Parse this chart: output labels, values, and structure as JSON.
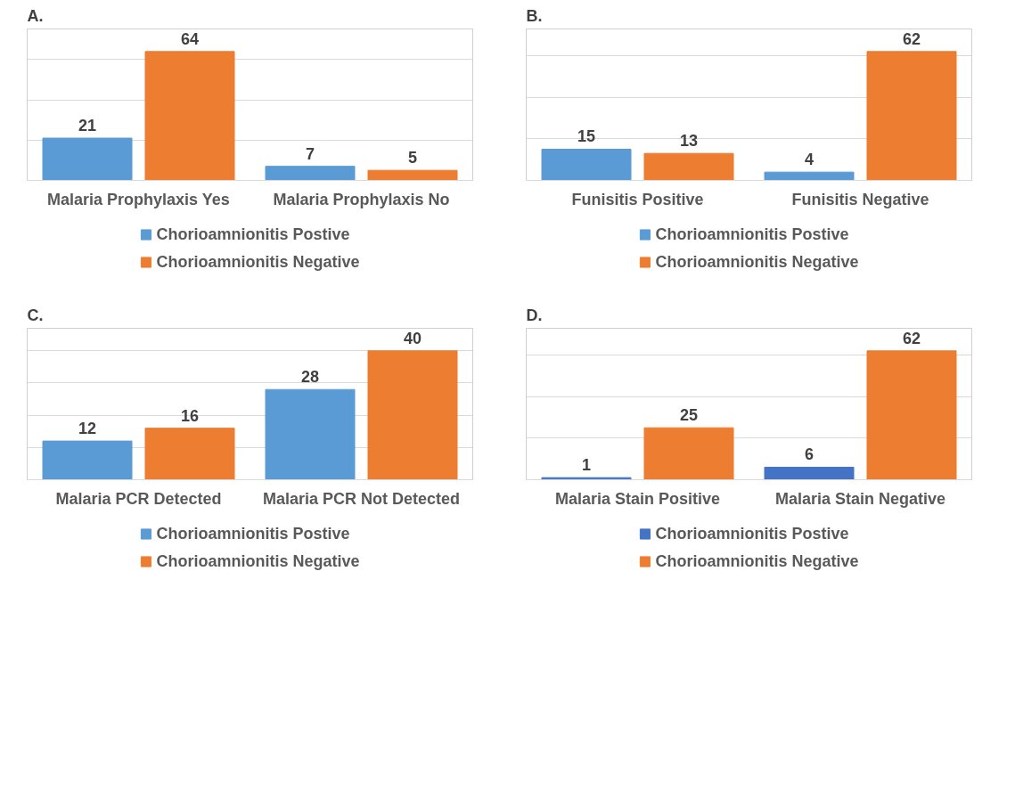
{
  "chart_data": [
    {
      "type": "bar",
      "title": "A.",
      "categories": [
        "Malaria Prophylaxis Yes",
        "Malaria Prophylaxis No"
      ],
      "series": [
        {
          "name": "Chorioamnionitis Postive",
          "color": "#5b9bd5",
          "values": [
            21,
            7
          ]
        },
        {
          "name": "Chorioamnionitis Negative",
          "color": "#ed7d31",
          "values": [
            64,
            5
          ]
        }
      ],
      "tick_labels": "x",
      "grid": "y",
      "legend": "bottom",
      "data_labels": true
    },
    {
      "type": "bar",
      "title": "B.",
      "categories": [
        "Funisitis Positive",
        "Funisitis Negative"
      ],
      "series": [
        {
          "name": "Chorioamnionitis Postive",
          "color": "#5b9bd5",
          "values": [
            15,
            4
          ]
        },
        {
          "name": "Chorioamnionitis Negative",
          "color": "#ed7d31",
          "values": [
            13,
            62
          ]
        }
      ],
      "tick_labels": "x",
      "grid": "y",
      "legend": "bottom",
      "data_labels": true
    },
    {
      "type": "bar",
      "title": "C.",
      "categories": [
        "Malaria PCR Detected",
        "Malaria PCR Not Detected"
      ],
      "series": [
        {
          "name": "Chorioamnionitis Postive",
          "color": "#5b9bd5",
          "values": [
            12,
            28
          ]
        },
        {
          "name": "Chorioamnionitis Negative",
          "color": "#ed7d31",
          "values": [
            16,
            40
          ]
        }
      ],
      "tick_labels": "x",
      "grid": "y",
      "legend": "bottom",
      "data_labels": true
    },
    {
      "type": "bar",
      "title": "D.",
      "categories": [
        "Malaria Stain Positive",
        "Malaria Stain Negative"
      ],
      "series": [
        {
          "name": "Chorioamnionitis Postive",
          "color": "#4472c4",
          "values": [
            1,
            6
          ]
        },
        {
          "name": "Chorioamnionitis Negative",
          "color": "#ed7d31",
          "values": [
            25,
            62
          ]
        }
      ],
      "tick_labels": "x",
      "grid": "y",
      "legend": "bottom",
      "data_labels": true
    }
  ]
}
